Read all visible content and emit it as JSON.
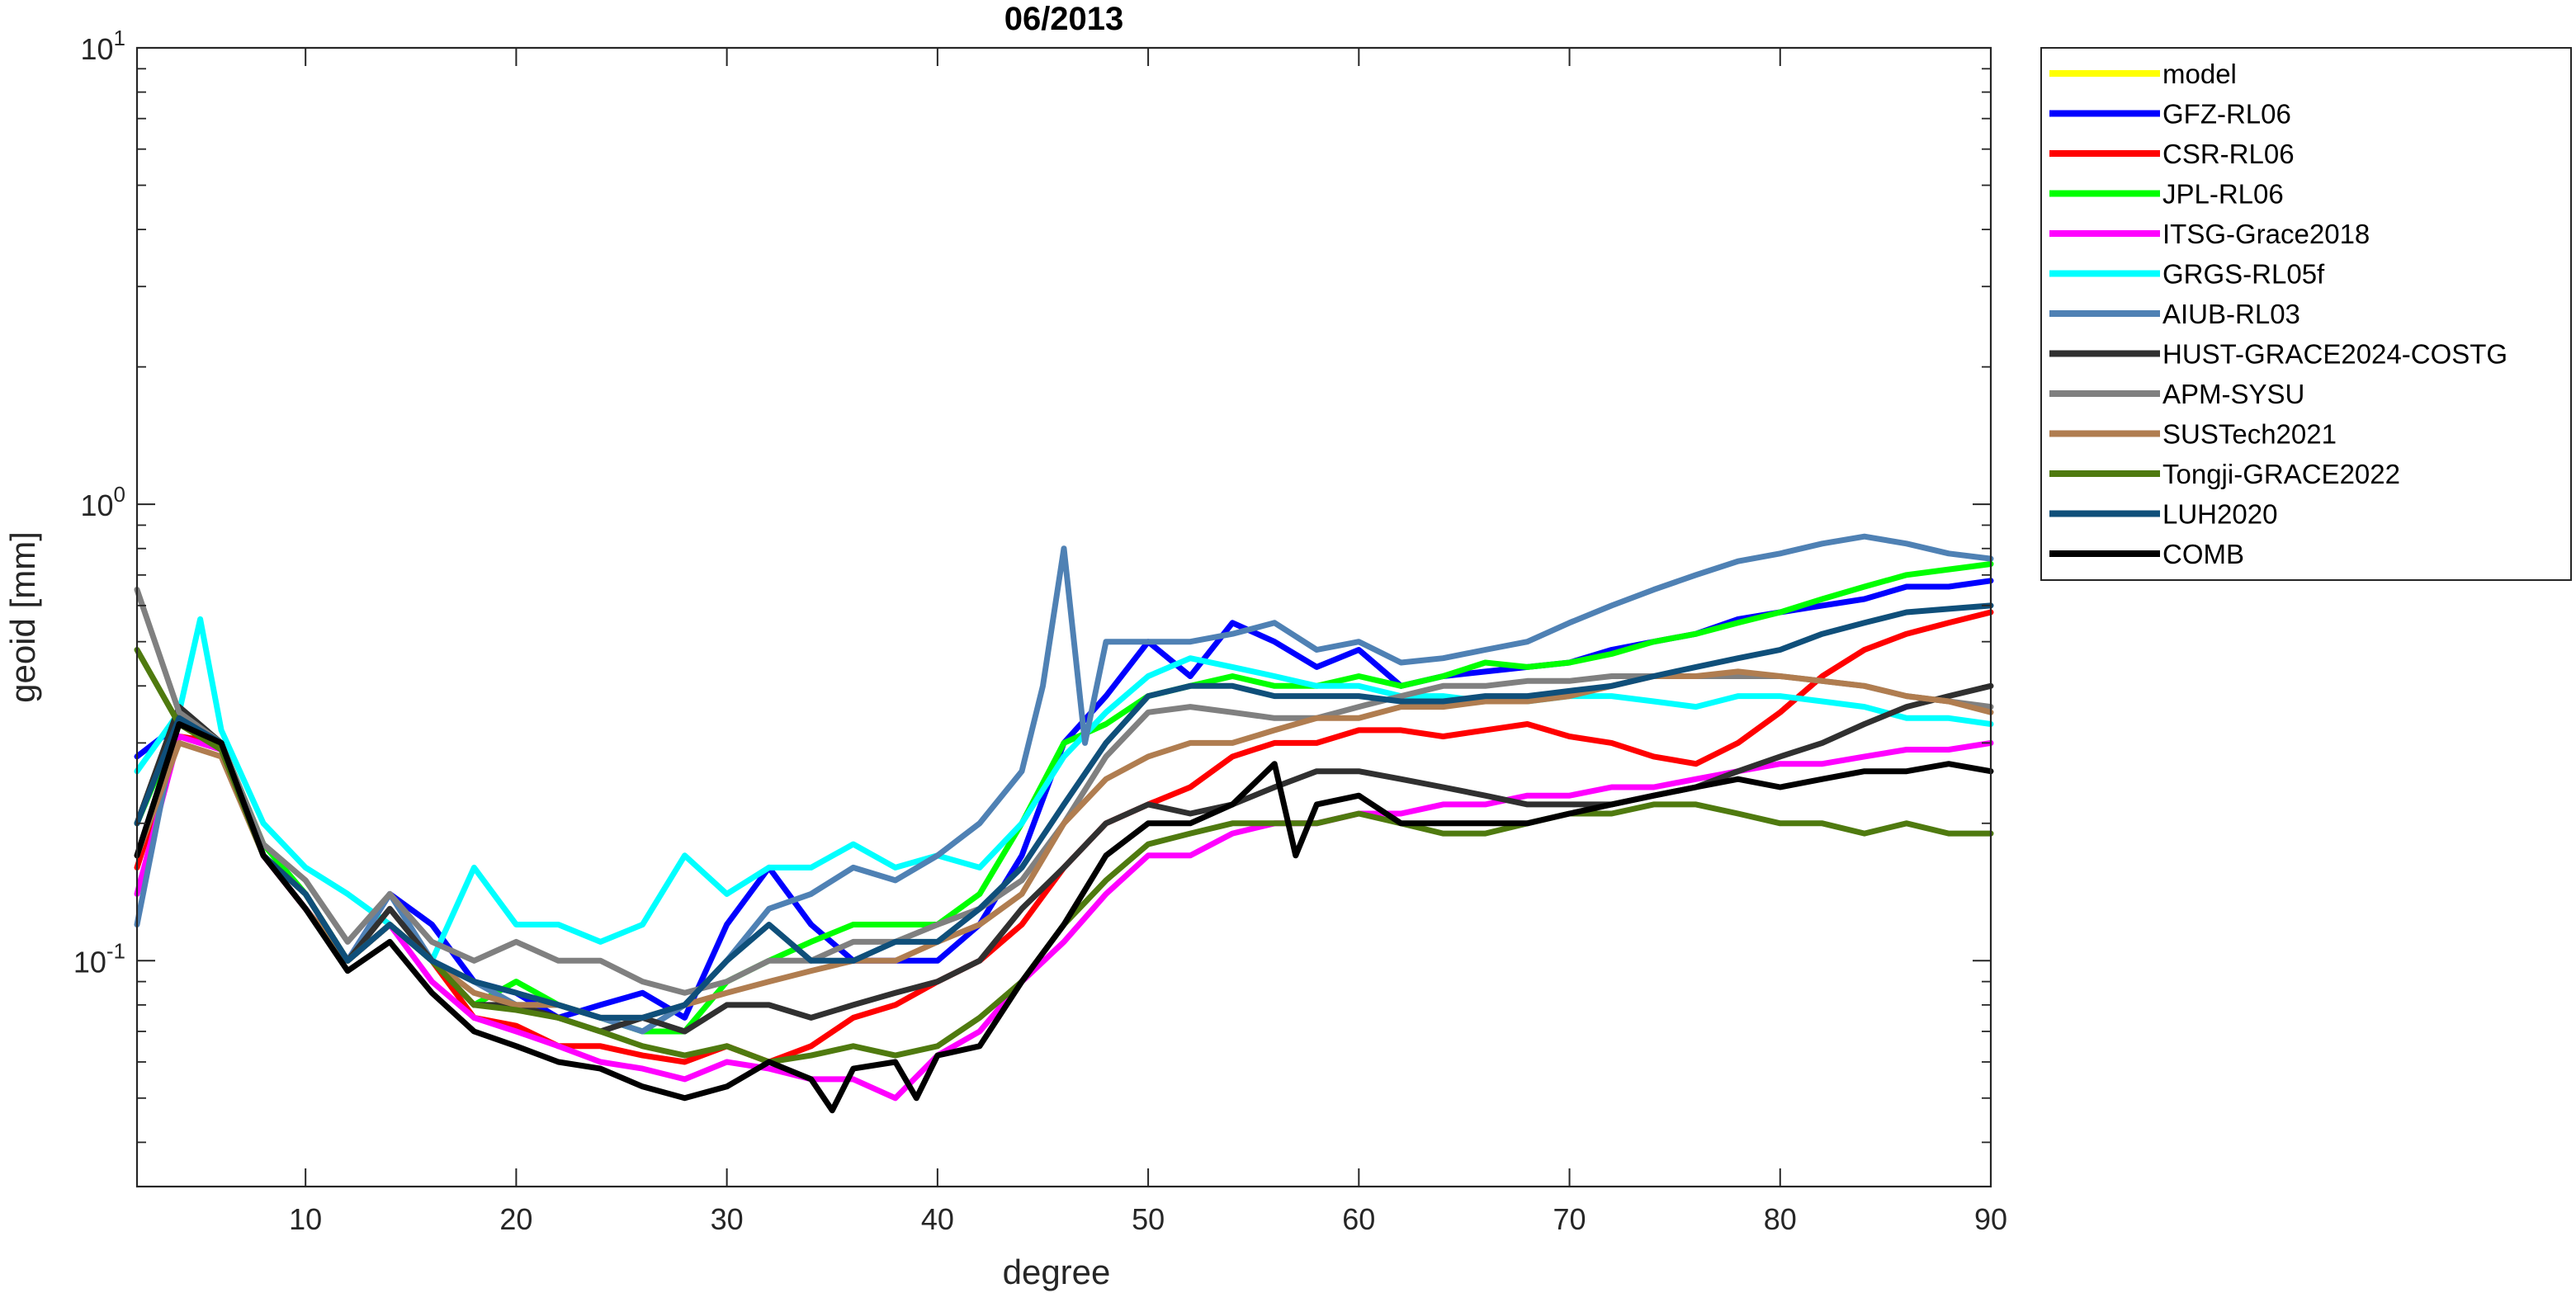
{
  "chart_data": {
    "type": "line",
    "title": "06/2013",
    "xlabel": "degree",
    "ylabel": "geoid [mm]",
    "xlim": [
      2,
      90
    ],
    "ylim": [
      0.032,
      10
    ],
    "yscale": "log",
    "xticks": [
      10,
      20,
      30,
      40,
      50,
      60,
      70,
      80,
      90
    ],
    "xtick_labels": [
      "10",
      "20",
      "30",
      "40",
      "50",
      "60",
      "70",
      "80",
      "90"
    ],
    "yticks": [
      {
        "value": 0.1,
        "base": "10",
        "exp": "-1"
      },
      {
        "value": 1,
        "base": "10",
        "exp": "0"
      },
      {
        "value": 10,
        "base": "10",
        "exp": "1"
      }
    ],
    "grid": false,
    "legend_position": "outside-top-right",
    "series": [
      {
        "name": "model",
        "color": "#ffff00",
        "x": [],
        "values": []
      },
      {
        "name": "GFZ-RL06",
        "color": "#0000ff",
        "x": [
          2,
          4,
          6,
          8,
          10,
          12,
          14,
          16,
          18,
          20,
          22,
          24,
          26,
          28,
          30,
          32,
          34,
          36,
          38,
          40,
          42,
          44,
          46,
          48,
          50,
          52,
          54,
          56,
          58,
          60,
          62,
          64,
          66,
          68,
          70,
          72,
          74,
          76,
          78,
          80,
          82,
          84,
          86,
          88,
          90
        ],
        "values": [
          0.28,
          0.33,
          0.3,
          0.17,
          0.13,
          0.1,
          0.14,
          0.12,
          0.09,
          0.085,
          0.075,
          0.08,
          0.085,
          0.075,
          0.12,
          0.16,
          0.12,
          0.1,
          0.1,
          0.1,
          0.12,
          0.17,
          0.3,
          0.38,
          0.5,
          0.42,
          0.55,
          0.5,
          0.44,
          0.48,
          0.4,
          0.42,
          0.43,
          0.44,
          0.45,
          0.48,
          0.5,
          0.52,
          0.56,
          0.58,
          0.6,
          0.62,
          0.66,
          0.66,
          0.68
        ]
      },
      {
        "name": "CSR-RL06",
        "color": "#ff0000",
        "x": [
          2,
          4,
          6,
          8,
          10,
          12,
          14,
          16,
          18,
          20,
          22,
          24,
          26,
          28,
          30,
          32,
          34,
          36,
          38,
          40,
          42,
          44,
          46,
          48,
          50,
          52,
          54,
          56,
          58,
          60,
          62,
          64,
          66,
          68,
          70,
          72,
          74,
          76,
          78,
          80,
          82,
          84,
          86,
          88,
          90
        ],
        "values": [
          0.16,
          0.31,
          0.3,
          0.17,
          0.13,
          0.1,
          0.12,
          0.1,
          0.075,
          0.072,
          0.065,
          0.065,
          0.062,
          0.06,
          0.065,
          0.06,
          0.065,
          0.075,
          0.08,
          0.09,
          0.1,
          0.12,
          0.16,
          0.2,
          0.22,
          0.24,
          0.28,
          0.3,
          0.3,
          0.32,
          0.32,
          0.31,
          0.32,
          0.33,
          0.31,
          0.3,
          0.28,
          0.27,
          0.3,
          0.35,
          0.42,
          0.48,
          0.52,
          0.55,
          0.58
        ]
      },
      {
        "name": "JPL-RL06",
        "color": "#00ff00",
        "x": [
          2,
          4,
          6,
          8,
          10,
          12,
          14,
          16,
          18,
          20,
          22,
          24,
          26,
          28,
          30,
          32,
          34,
          36,
          38,
          40,
          42,
          44,
          46,
          48,
          50,
          52,
          54,
          56,
          58,
          60,
          62,
          64,
          66,
          68,
          70,
          72,
          74,
          76,
          78,
          80,
          82,
          84,
          86,
          88,
          90
        ],
        "values": [
          0.2,
          0.33,
          0.3,
          0.18,
          0.14,
          0.1,
          0.12,
          0.1,
          0.08,
          0.09,
          0.08,
          0.075,
          0.07,
          0.07,
          0.09,
          0.1,
          0.11,
          0.12,
          0.12,
          0.12,
          0.14,
          0.2,
          0.3,
          0.33,
          0.38,
          0.4,
          0.42,
          0.4,
          0.4,
          0.42,
          0.4,
          0.42,
          0.45,
          0.44,
          0.45,
          0.47,
          0.5,
          0.52,
          0.55,
          0.58,
          0.62,
          0.66,
          0.7,
          0.72,
          0.74
        ]
      },
      {
        "name": "ITSG-Grace2018",
        "color": "#ff00ff",
        "x": [
          2,
          4,
          6,
          8,
          10,
          12,
          14,
          16,
          18,
          20,
          22,
          24,
          26,
          28,
          30,
          32,
          34,
          36,
          38,
          40,
          42,
          44,
          46,
          48,
          50,
          52,
          54,
          56,
          58,
          60,
          62,
          64,
          66,
          68,
          70,
          72,
          74,
          76,
          78,
          80,
          82,
          84,
          86,
          88,
          90
        ],
        "values": [
          0.14,
          0.31,
          0.29,
          0.17,
          0.13,
          0.1,
          0.12,
          0.09,
          0.075,
          0.07,
          0.065,
          0.06,
          0.058,
          0.055,
          0.06,
          0.058,
          0.055,
          0.055,
          0.05,
          0.062,
          0.07,
          0.09,
          0.11,
          0.14,
          0.17,
          0.17,
          0.19,
          0.2,
          0.2,
          0.21,
          0.21,
          0.22,
          0.22,
          0.23,
          0.23,
          0.24,
          0.24,
          0.25,
          0.26,
          0.27,
          0.27,
          0.28,
          0.29,
          0.29,
          0.3
        ]
      },
      {
        "name": "GRGS-RL05f",
        "color": "#00ffff",
        "x": [
          2,
          4,
          5,
          6,
          8,
          10,
          12,
          14,
          16,
          18,
          20,
          22,
          24,
          26,
          28,
          30,
          32,
          34,
          36,
          38,
          40,
          42,
          44,
          46,
          48,
          50,
          52,
          54,
          56,
          58,
          60,
          62,
          64,
          66,
          68,
          70,
          72,
          74,
          76,
          78,
          80,
          82,
          84,
          86,
          88,
          90
        ],
        "values": [
          0.26,
          0.35,
          0.56,
          0.32,
          0.2,
          0.16,
          0.14,
          0.12,
          0.1,
          0.16,
          0.12,
          0.12,
          0.11,
          0.12,
          0.17,
          0.14,
          0.16,
          0.16,
          0.18,
          0.16,
          0.17,
          0.16,
          0.2,
          0.28,
          0.35,
          0.42,
          0.46,
          0.44,
          0.42,
          0.4,
          0.4,
          0.38,
          0.38,
          0.37,
          0.37,
          0.38,
          0.38,
          0.37,
          0.36,
          0.38,
          0.38,
          0.37,
          0.36,
          0.34,
          0.34,
          0.33
        ]
      },
      {
        "name": "AIUB-RL03",
        "color": "#4f81b4",
        "x": [
          2,
          4,
          6,
          8,
          10,
          12,
          14,
          16,
          18,
          20,
          22,
          24,
          26,
          28,
          30,
          32,
          34,
          36,
          38,
          40,
          42,
          44,
          45,
          46,
          47,
          48,
          50,
          52,
          54,
          56,
          58,
          60,
          62,
          64,
          66,
          68,
          70,
          72,
          74,
          76,
          78,
          80,
          82,
          84,
          86,
          88,
          90
        ],
        "values": [
          0.12,
          0.35,
          0.3,
          0.17,
          0.14,
          0.1,
          0.14,
          0.1,
          0.09,
          0.08,
          0.08,
          0.075,
          0.07,
          0.08,
          0.1,
          0.13,
          0.14,
          0.16,
          0.15,
          0.17,
          0.2,
          0.26,
          0.4,
          0.8,
          0.3,
          0.5,
          0.5,
          0.5,
          0.52,
          0.55,
          0.48,
          0.5,
          0.45,
          0.46,
          0.48,
          0.5,
          0.55,
          0.6,
          0.65,
          0.7,
          0.75,
          0.78,
          0.82,
          0.85,
          0.82,
          0.78,
          0.76
        ]
      },
      {
        "name": "HUST-GRACE2024-COSTG",
        "color": "#303030",
        "x": [
          2,
          4,
          6,
          8,
          10,
          12,
          14,
          16,
          18,
          20,
          22,
          24,
          26,
          28,
          30,
          32,
          34,
          36,
          38,
          40,
          42,
          44,
          46,
          48,
          50,
          52,
          54,
          56,
          58,
          60,
          62,
          64,
          66,
          68,
          70,
          72,
          74,
          76,
          78,
          80,
          82,
          84,
          86,
          88,
          90
        ],
        "values": [
          0.2,
          0.36,
          0.3,
          0.17,
          0.14,
          0.1,
          0.13,
          0.1,
          0.08,
          0.08,
          0.075,
          0.07,
          0.075,
          0.07,
          0.08,
          0.08,
          0.075,
          0.08,
          0.085,
          0.09,
          0.1,
          0.13,
          0.16,
          0.2,
          0.22,
          0.21,
          0.22,
          0.24,
          0.26,
          0.26,
          0.25,
          0.24,
          0.23,
          0.22,
          0.22,
          0.22,
          0.23,
          0.24,
          0.26,
          0.28,
          0.3,
          0.33,
          0.36,
          0.38,
          0.4
        ]
      },
      {
        "name": "APM-SYSU",
        "color": "#808080",
        "x": [
          2,
          4,
          6,
          8,
          10,
          12,
          14,
          16,
          18,
          20,
          22,
          24,
          26,
          28,
          30,
          32,
          34,
          36,
          38,
          40,
          42,
          44,
          46,
          48,
          50,
          52,
          54,
          56,
          58,
          60,
          62,
          64,
          66,
          68,
          70,
          72,
          74,
          76,
          78,
          80,
          82,
          84,
          86,
          88,
          90
        ],
        "values": [
          0.65,
          0.35,
          0.3,
          0.18,
          0.15,
          0.11,
          0.14,
          0.11,
          0.1,
          0.11,
          0.1,
          0.1,
          0.09,
          0.085,
          0.09,
          0.1,
          0.1,
          0.11,
          0.11,
          0.12,
          0.13,
          0.15,
          0.2,
          0.28,
          0.35,
          0.36,
          0.35,
          0.34,
          0.34,
          0.36,
          0.38,
          0.4,
          0.4,
          0.41,
          0.41,
          0.42,
          0.42,
          0.42,
          0.42,
          0.42,
          0.41,
          0.4,
          0.38,
          0.37,
          0.36
        ]
      },
      {
        "name": "SUSTech2021",
        "color": "#b07d50",
        "x": [
          2,
          4,
          6,
          8,
          10,
          12,
          14,
          16,
          18,
          20,
          22,
          24,
          26,
          28,
          30,
          32,
          34,
          36,
          38,
          40,
          42,
          44,
          46,
          48,
          50,
          52,
          54,
          56,
          58,
          60,
          62,
          64,
          66,
          68,
          70,
          72,
          74,
          76,
          78,
          80,
          82,
          84,
          86,
          88,
          90
        ],
        "values": [
          0.17,
          0.3,
          0.28,
          0.17,
          0.13,
          0.1,
          0.12,
          0.1,
          0.085,
          0.08,
          0.08,
          0.075,
          0.075,
          0.08,
          0.085,
          0.09,
          0.095,
          0.1,
          0.1,
          0.11,
          0.12,
          0.14,
          0.2,
          0.25,
          0.28,
          0.3,
          0.3,
          0.32,
          0.34,
          0.34,
          0.36,
          0.36,
          0.37,
          0.37,
          0.38,
          0.4,
          0.42,
          0.42,
          0.43,
          0.42,
          0.41,
          0.4,
          0.38,
          0.37,
          0.35
        ]
      },
      {
        "name": "Tongji-GRACE2022",
        "color": "#4f7a0f",
        "x": [
          2,
          4,
          6,
          8,
          10,
          12,
          14,
          16,
          18,
          20,
          22,
          24,
          26,
          28,
          30,
          32,
          34,
          36,
          38,
          40,
          42,
          44,
          46,
          48,
          50,
          52,
          54,
          56,
          58,
          60,
          62,
          64,
          66,
          68,
          70,
          72,
          74,
          76,
          78,
          80,
          82,
          84,
          86,
          88,
          90
        ],
        "values": [
          0.48,
          0.33,
          0.29,
          0.17,
          0.14,
          0.1,
          0.12,
          0.1,
          0.08,
          0.078,
          0.075,
          0.07,
          0.065,
          0.062,
          0.065,
          0.06,
          0.062,
          0.065,
          0.062,
          0.065,
          0.075,
          0.09,
          0.12,
          0.15,
          0.18,
          0.19,
          0.2,
          0.2,
          0.2,
          0.21,
          0.2,
          0.19,
          0.19,
          0.2,
          0.21,
          0.21,
          0.22,
          0.22,
          0.21,
          0.2,
          0.2,
          0.19,
          0.2,
          0.19,
          0.19
        ]
      },
      {
        "name": "LUH2020",
        "color": "#0f4f7a",
        "x": [
          2,
          4,
          6,
          8,
          10,
          12,
          14,
          16,
          18,
          20,
          22,
          24,
          26,
          28,
          30,
          32,
          34,
          36,
          38,
          40,
          42,
          44,
          46,
          48,
          50,
          52,
          54,
          56,
          58,
          60,
          62,
          64,
          66,
          68,
          70,
          72,
          74,
          76,
          78,
          80,
          82,
          84,
          86,
          88,
          90
        ],
        "values": [
          0.2,
          0.34,
          0.3,
          0.17,
          0.14,
          0.1,
          0.12,
          0.1,
          0.09,
          0.085,
          0.08,
          0.075,
          0.075,
          0.08,
          0.1,
          0.12,
          0.1,
          0.1,
          0.11,
          0.11,
          0.13,
          0.16,
          0.22,
          0.3,
          0.38,
          0.4,
          0.4,
          0.38,
          0.38,
          0.38,
          0.37,
          0.37,
          0.38,
          0.38,
          0.39,
          0.4,
          0.42,
          0.44,
          0.46,
          0.48,
          0.52,
          0.55,
          0.58,
          0.59,
          0.6
        ]
      },
      {
        "name": "COMB",
        "color": "#000000",
        "x": [
          2,
          4,
          6,
          8,
          10,
          12,
          14,
          16,
          18,
          20,
          22,
          24,
          26,
          28,
          30,
          32,
          34,
          35,
          36,
          38,
          39,
          40,
          42,
          44,
          46,
          48,
          50,
          52,
          54,
          56,
          57,
          58,
          60,
          62,
          64,
          66,
          68,
          70,
          72,
          74,
          76,
          78,
          80,
          82,
          84,
          86,
          88,
          90
        ],
        "values": [
          0.17,
          0.33,
          0.3,
          0.17,
          0.13,
          0.095,
          0.11,
          0.085,
          0.07,
          0.065,
          0.06,
          0.058,
          0.053,
          0.05,
          0.053,
          0.06,
          0.055,
          0.047,
          0.058,
          0.06,
          0.05,
          0.062,
          0.065,
          0.09,
          0.12,
          0.17,
          0.2,
          0.2,
          0.22,
          0.27,
          0.17,
          0.22,
          0.23,
          0.2,
          0.2,
          0.2,
          0.2,
          0.21,
          0.22,
          0.23,
          0.24,
          0.25,
          0.24,
          0.25,
          0.26,
          0.26,
          0.27,
          0.26
        ]
      }
    ]
  }
}
